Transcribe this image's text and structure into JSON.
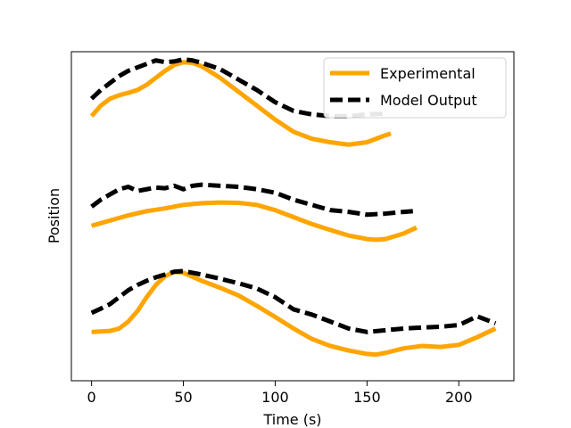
{
  "chart_data": {
    "type": "line",
    "title": "",
    "xlabel": "Time (s)",
    "ylabel": "Position",
    "xlim": [
      -11,
      230
    ],
    "ylim": [
      -0.15,
      9.3
    ],
    "xticks": [
      0,
      50,
      100,
      150,
      200
    ],
    "yticks": [],
    "grid": false,
    "legend_position": "top-right",
    "colors": {
      "experimental": "#ffa500",
      "model": "#000000"
    },
    "legend": [
      {
        "label": "Experimental",
        "style": "solid",
        "color": "#ffa500"
      },
      {
        "label": "Model Output",
        "style": "dashed",
        "color": "#000000"
      }
    ],
    "series": [
      {
        "name": "Experimental",
        "style": "solid",
        "color": "#ffa500",
        "x": [
          0,
          5,
          10,
          15,
          20,
          25,
          30,
          35,
          40,
          45,
          50,
          55,
          60,
          70,
          80,
          90,
          100,
          110,
          120,
          130,
          140,
          150,
          155,
          160,
          163
        ],
        "y": [
          7.45,
          7.75,
          7.95,
          8.05,
          8.12,
          8.2,
          8.35,
          8.55,
          8.75,
          8.92,
          9.0,
          8.98,
          8.88,
          8.55,
          8.15,
          7.75,
          7.35,
          7.0,
          6.8,
          6.7,
          6.63,
          6.7,
          6.8,
          6.9,
          6.95
        ]
      },
      {
        "name": "Model Output",
        "style": "dashed",
        "color": "#000000",
        "x": [
          0,
          5,
          10,
          15,
          20,
          25,
          30,
          35,
          40,
          45,
          50,
          55,
          60,
          70,
          80,
          90,
          100,
          110,
          120,
          130,
          140,
          150,
          160
        ],
        "y": [
          7.95,
          8.2,
          8.4,
          8.6,
          8.75,
          8.85,
          8.95,
          9.05,
          9.0,
          9.02,
          9.08,
          9.05,
          8.98,
          8.8,
          8.5,
          8.2,
          7.85,
          7.6,
          7.5,
          7.45,
          7.45,
          7.5,
          7.52
        ]
      },
      {
        "name": "Experimental",
        "style": "solid",
        "color": "#ffa500",
        "x": [
          0,
          10,
          20,
          30,
          40,
          50,
          60,
          70,
          80,
          90,
          100,
          110,
          120,
          130,
          140,
          150,
          155,
          160,
          170,
          177
        ],
        "y": [
          4.3,
          4.45,
          4.6,
          4.72,
          4.8,
          4.9,
          4.95,
          4.97,
          4.96,
          4.9,
          4.75,
          4.55,
          4.35,
          4.18,
          4.02,
          3.92,
          3.9,
          3.92,
          4.08,
          4.25
        ]
      },
      {
        "name": "Model Output",
        "style": "dashed",
        "color": "#000000",
        "x": [
          0,
          5,
          10,
          15,
          20,
          25,
          30,
          35,
          40,
          45,
          50,
          55,
          60,
          70,
          80,
          90,
          100,
          110,
          120,
          130,
          140,
          150,
          160,
          170,
          175
        ],
        "y": [
          4.85,
          5.05,
          5.2,
          5.35,
          5.42,
          5.3,
          5.35,
          5.4,
          5.38,
          5.45,
          5.35,
          5.45,
          5.48,
          5.45,
          5.42,
          5.35,
          5.25,
          5.05,
          4.9,
          4.75,
          4.7,
          4.62,
          4.65,
          4.7,
          4.72
        ]
      },
      {
        "name": "Experimental",
        "style": "solid",
        "color": "#ffa500",
        "x": [
          0,
          10,
          15,
          20,
          25,
          30,
          35,
          40,
          45,
          50,
          60,
          70,
          80,
          90,
          100,
          110,
          120,
          130,
          140,
          150,
          155,
          160,
          170,
          180,
          190,
          200,
          210,
          220
        ],
        "y": [
          1.25,
          1.28,
          1.35,
          1.55,
          1.85,
          2.25,
          2.6,
          2.85,
          2.98,
          2.95,
          2.72,
          2.52,
          2.3,
          2.0,
          1.68,
          1.35,
          1.05,
          0.85,
          0.72,
          0.62,
          0.6,
          0.65,
          0.78,
          0.85,
          0.82,
          0.88,
          1.1,
          1.35
        ]
      },
      {
        "name": "Model Output",
        "style": "dashed",
        "color": "#000000",
        "x": [
          0,
          5,
          10,
          15,
          20,
          25,
          30,
          35,
          40,
          45,
          50,
          55,
          60,
          70,
          80,
          90,
          100,
          110,
          120,
          130,
          140,
          150,
          160,
          170,
          180,
          190,
          200,
          210,
          220
        ],
        "y": [
          1.8,
          1.92,
          2.05,
          2.25,
          2.45,
          2.6,
          2.72,
          2.82,
          2.9,
          2.98,
          3.0,
          2.95,
          2.9,
          2.78,
          2.65,
          2.5,
          2.25,
          1.9,
          1.75,
          1.55,
          1.35,
          1.25,
          1.3,
          1.35,
          1.38,
          1.4,
          1.45,
          1.7,
          1.5
        ]
      }
    ]
  }
}
